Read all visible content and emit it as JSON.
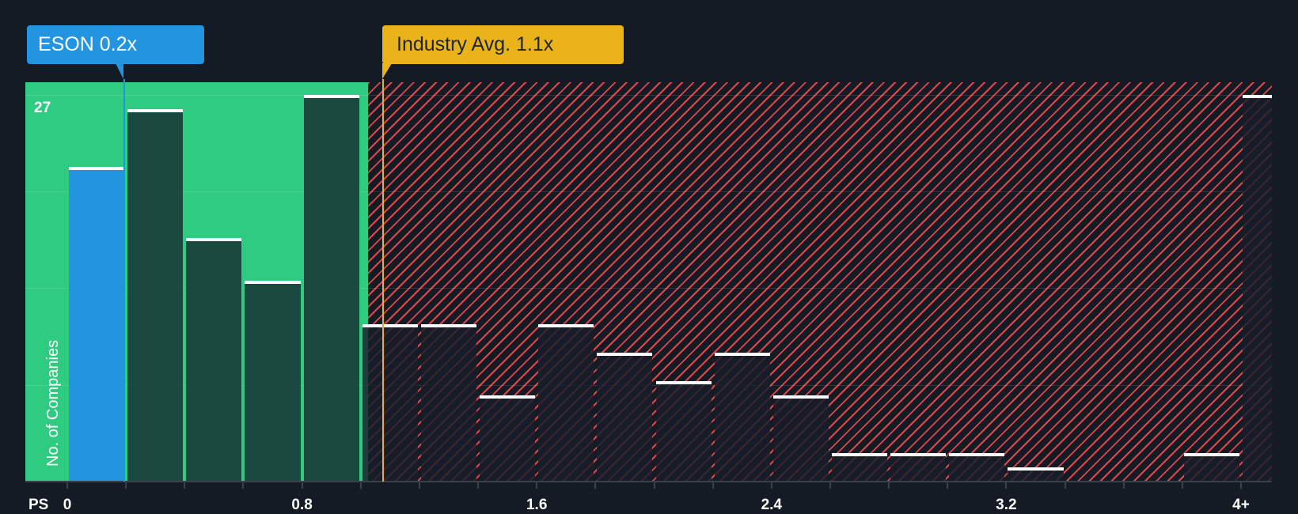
{
  "colors": {
    "background": "#151b24",
    "undervalued_zone": "#2ecb80",
    "subject_bar": "#2394e0",
    "industry_line": "#ebb31a",
    "overvalued_hatch": "#e0464a",
    "bar_cap": "#ffffff"
  },
  "callouts": {
    "subject": {
      "label": "ESON 0.2x",
      "value": 0.2
    },
    "industry": {
      "label": "Industry Avg. 1.1x",
      "value": 1.1
    }
  },
  "axis": {
    "x_prefix": "PS",
    "y_label": "No. of Companies",
    "y_max_label": "27"
  },
  "chart_data": {
    "type": "bar",
    "title": "",
    "xlabel": "PS",
    "ylabel": "No. of Companies",
    "bin_width": 0.2,
    "categories": [
      "0-0.2",
      "0.2-0.4",
      "0.4-0.6",
      "0.6-0.8",
      "0.8-1.0",
      "1.0-1.2",
      "1.2-1.4",
      "1.4-1.6",
      "1.6-1.8",
      "1.8-2.0",
      "2.0-2.2",
      "2.2-2.4",
      "2.4-2.6",
      "2.6-2.8",
      "2.8-3.0",
      "3.0-3.2",
      "3.2-3.4",
      "3.4-3.6",
      "3.6-3.8",
      "3.8-4.0",
      "4+"
    ],
    "values": [
      22,
      26,
      17,
      14,
      27,
      11,
      11,
      6,
      11,
      9,
      7,
      9,
      6,
      2,
      2,
      2,
      1,
      0,
      0,
      2,
      27
    ],
    "x_tick_labels": [
      "0",
      "0.8",
      "1.6",
      "2.4",
      "3.2",
      "4+"
    ],
    "x_tick_positions": [
      0,
      0.8,
      1.6,
      2.4,
      3.2,
      4.0
    ],
    "ylim": [
      0,
      27
    ],
    "y_tick_labels": [
      "27"
    ],
    "gridlines": true,
    "subject": {
      "name": "ESON",
      "value": 0.2,
      "bin_index": 0
    },
    "industry_average": 1.1,
    "undervalued_zone_upper": 1.03,
    "legend": []
  }
}
